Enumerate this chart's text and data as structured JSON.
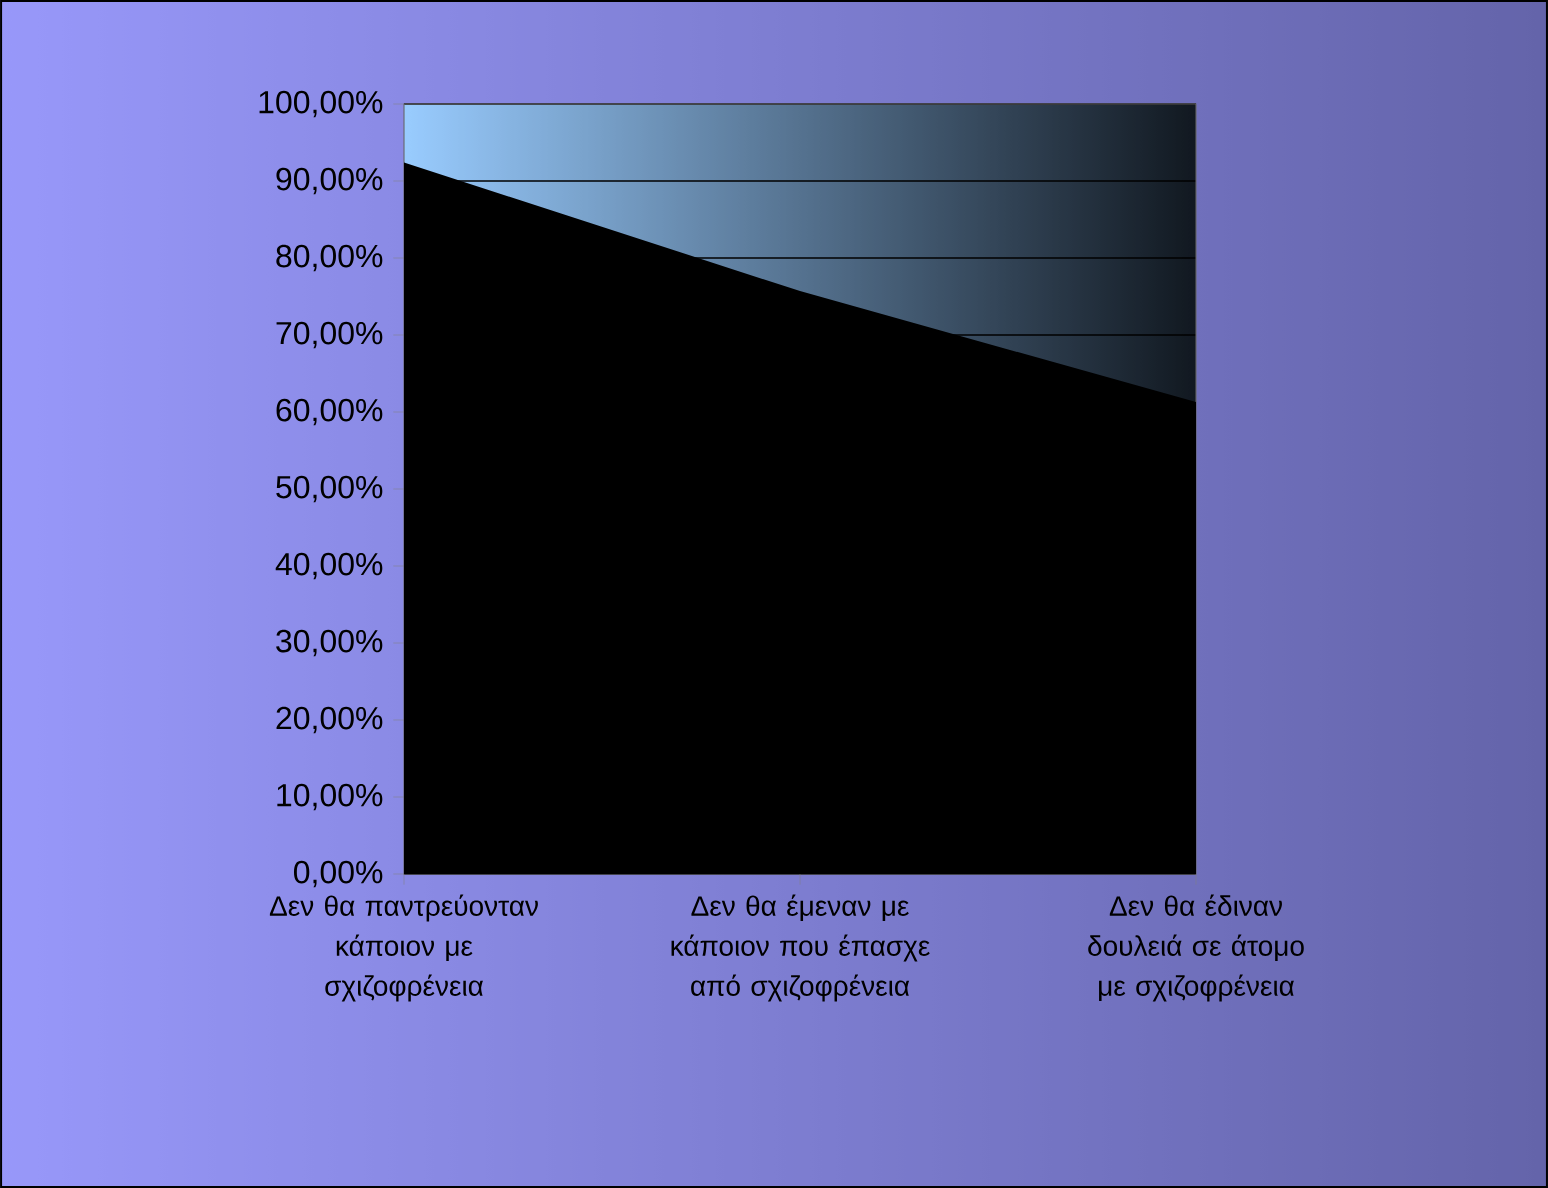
{
  "chart_data": {
    "type": "area",
    "categories": [
      "Δεν θα παντρεύονταν κάποιον με σχιζοφρένεια",
      "Δεν θα έμεναν με κάποιον που έπασχε από σχιζοφρένεια",
      "Δεν θα έδιναν δουλειά σε άτομο με σχιζοφρένεια"
    ],
    "values": [
      92.4,
      75.7,
      61.3
    ],
    "color": "#000000",
    "ylim": [
      0,
      100
    ],
    "yticks": [
      {
        "value": 0,
        "label": "0,00%"
      },
      {
        "value": 10,
        "label": "10,00%"
      },
      {
        "value": 20,
        "label": "20,00%"
      },
      {
        "value": 30,
        "label": "30,00%"
      },
      {
        "value": 40,
        "label": "40,00%"
      },
      {
        "value": 50,
        "label": "50,00%"
      },
      {
        "value": 60,
        "label": "60,00%"
      },
      {
        "value": 70,
        "label": "70,00%"
      },
      {
        "value": 80,
        "label": "80,00%"
      },
      {
        "value": 90,
        "label": "90,00%"
      },
      {
        "value": 100,
        "label": "100,00%"
      }
    ],
    "grid": "y"
  }
}
